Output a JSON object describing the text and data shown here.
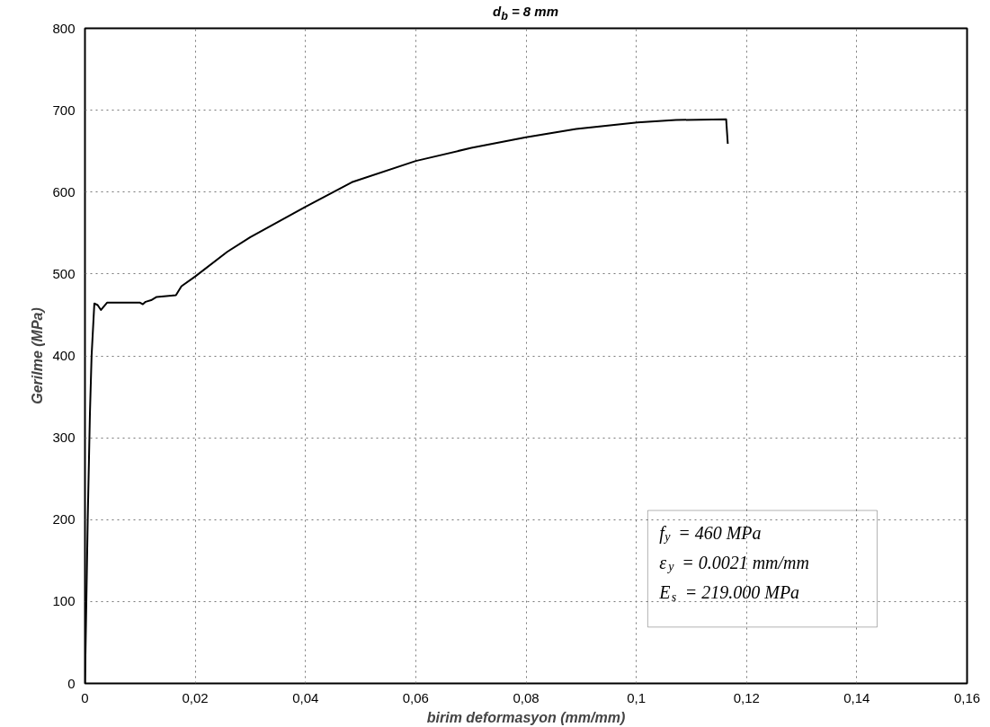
{
  "chart_data": {
    "type": "line",
    "title": "d$_{b}$ = 8 mm",
    "xlabel": "birim deformasyon (mm/mm)",
    "ylabel": "Gerilme (MPa)",
    "x": [
      0,
      0.0005,
      0.0009,
      0.0012,
      0.0017,
      0.0023,
      0.0029,
      0.004,
      0.01,
      0.0105,
      0.011,
      0.012,
      0.013,
      0.0165,
      0.0175,
      0.02,
      0.0258,
      0.03,
      0.04,
      0.0484,
      0.06,
      0.0701,
      0.08,
      0.0891,
      0.1002,
      0.1072,
      0.1163,
      0.1166
    ],
    "values": [
      0,
      200,
      330,
      400,
      464,
      462,
      456,
      465,
      465,
      463,
      466,
      468,
      472,
      474,
      485,
      497,
      527,
      545,
      582,
      612,
      638,
      654,
      667,
      677,
      685,
      688,
      689,
      659
    ],
    "color": "#000000",
    "line_style": "solid",
    "marker": "none",
    "xlim": [
      0,
      0.16
    ],
    "ylim": [
      0,
      800
    ],
    "xticks": [
      0,
      {
        "value": 0.02,
        "label": "0,02"
      },
      {
        "value": 0.04,
        "label": "0,04"
      },
      {
        "value": 0.06,
        "label": "0,06"
      },
      {
        "value": 0.08,
        "label": "0,08"
      },
      {
        "value": 0.1,
        "label": "0,1"
      },
      {
        "value": 0.12,
        "label": "0,12"
      },
      {
        "value": 0.14,
        "label": "0,14"
      },
      {
        "value": 0.16,
        "label": "0,16"
      }
    ],
    "yticks": [
      0,
      100,
      200,
      300,
      400,
      500,
      600,
      700,
      800
    ],
    "grid": true,
    "annotations": [
      "f$_{y}$ = 460 MPa",
      "ε$_{y}$ = 0.0021 mm/mm",
      "E$_{s}$ = 219.000 MPa"
    ]
  }
}
